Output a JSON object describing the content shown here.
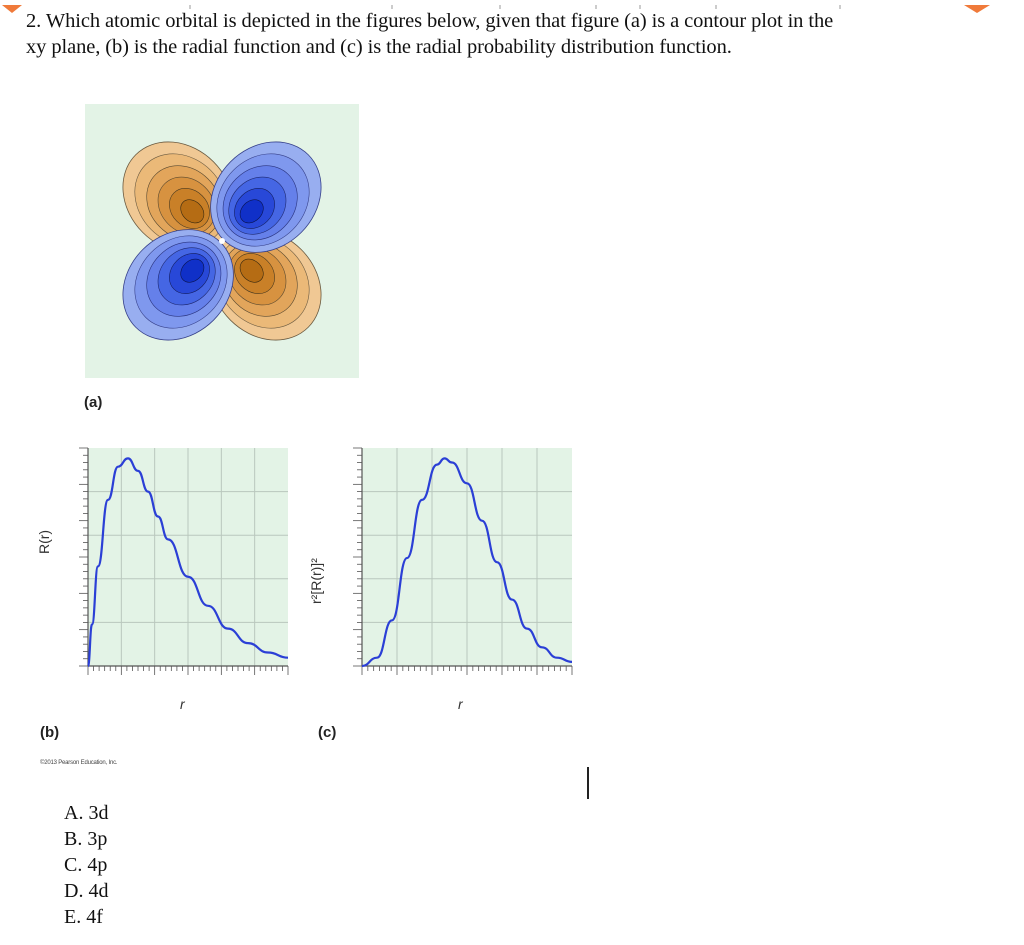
{
  "question": {
    "line1": "2. Which atomic orbital is depicted in the figures below, given that figure (a) is a  contour plot in the",
    "line2": "xy plane, (b) is the radial function and (c) is the radial probability  distribution function."
  },
  "figures": {
    "a_label": "(a)",
    "b_label": "(b)",
    "c_label": "(c)",
    "b_ylabel": "R(r)",
    "b_xlabel": "r",
    "c_ylabel": "r²[R(r)]²",
    "c_xlabel": "r",
    "copyright": "©2013 Pearson Education, Inc."
  },
  "choices": [
    "A. 3d",
    "B. 3p",
    "C. 4p",
    "D. 4d",
    "E. 4f"
  ],
  "colors": {
    "plot_bg": "#e3f3e6",
    "grid": "#b9c7bd",
    "curve": "#2b3fd6",
    "lobe_orange": "#f0c894",
    "lobe_blue": "#98aef0",
    "accent_top": "#f07a3a"
  },
  "chart_data": [
    {
      "type": "line",
      "title": "",
      "xlabel": "r",
      "ylabel": "R(r)",
      "series": [
        {
          "x": [
            0,
            0.2,
            0.5,
            1.0,
            1.5,
            2.0,
            2.5,
            3.0,
            3.5,
            4.0,
            5.0,
            6.0,
            7.0,
            8.0,
            9.0,
            10.0
          ],
          "values": [
            0,
            0.2,
            0.48,
            0.8,
            0.96,
            1.0,
            0.94,
            0.84,
            0.72,
            0.61,
            0.43,
            0.29,
            0.18,
            0.11,
            0.065,
            0.04
          ]
        }
      ]
    },
    {
      "type": "line",
      "title": "",
      "xlabel": "r",
      "ylabel": "r²[R(r)]²",
      "series": [
        {
          "x": [
            0,
            1.0,
            2.0,
            3.0,
            4.0,
            5.0,
            5.5,
            6.0,
            7.0,
            8.0,
            9.0,
            10.0,
            11.0,
            12.0,
            13.0,
            14.0
          ],
          "values": [
            0,
            0.04,
            0.22,
            0.52,
            0.8,
            0.97,
            1.0,
            0.98,
            0.88,
            0.7,
            0.5,
            0.32,
            0.18,
            0.09,
            0.04,
            0.02
          ]
        }
      ]
    }
  ]
}
